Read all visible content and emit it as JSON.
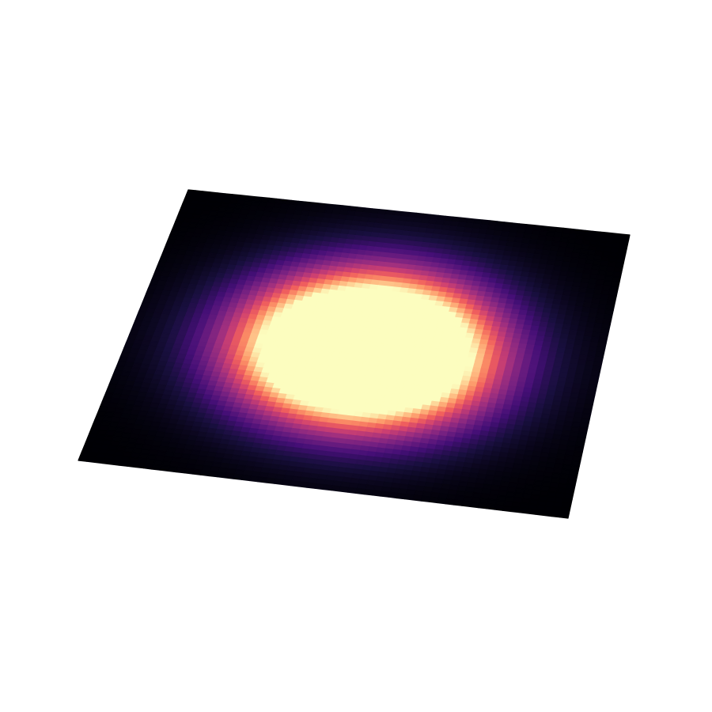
{
  "chart_data": {
    "type": "heatmap",
    "title": "",
    "xlabel": "",
    "ylabel": "",
    "zlabel": "",
    "grid": false,
    "axes_visible": false,
    "projection": "3d-surface-top-view",
    "colormap": "magma",
    "colormap_stops": [
      "#000004",
      "#180f3d",
      "#440f76",
      "#721f81",
      "#9e2f7f",
      "#cd4071",
      "#f1605d",
      "#fd9668",
      "#feca8d",
      "#fcfdbf"
    ],
    "x_range": [
      -3,
      3
    ],
    "y_range": [
      -3,
      3
    ],
    "function": "gaussian",
    "peak_center": [
      0,
      0
    ],
    "peak_value": 1.0,
    "color_saturation_value": 0.4,
    "spread": 1.0,
    "grid_resolution": 60
  }
}
